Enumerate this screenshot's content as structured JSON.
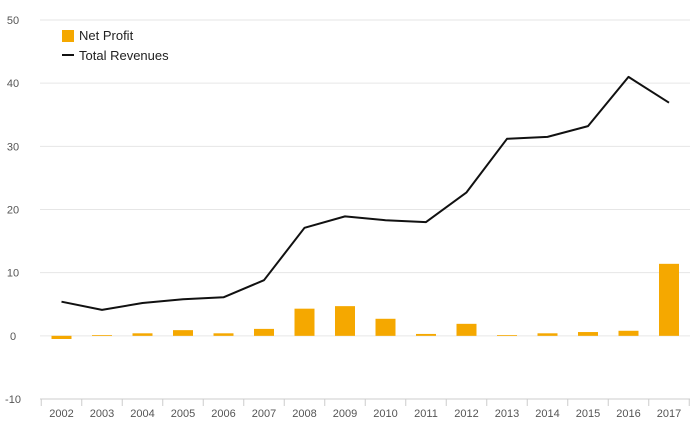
{
  "chart_data": {
    "type": "bar+line",
    "categories": [
      "2002",
      "2003",
      "2004",
      "2005",
      "2006",
      "2007",
      "2008",
      "2009",
      "2010",
      "2011",
      "2012",
      "2013",
      "2014",
      "2015",
      "2016",
      "2017"
    ],
    "series": [
      {
        "name": "Net Profit",
        "kind": "bar",
        "color": "#F5A800",
        "values": [
          -0.5,
          0.1,
          0.4,
          0.9,
          0.4,
          1.1,
          4.3,
          4.7,
          2.7,
          0.3,
          1.9,
          0.1,
          0.4,
          0.6,
          0.8,
          11.4
        ]
      },
      {
        "name": "Total Revenues",
        "kind": "line",
        "color": "#111111",
        "values": [
          5.4,
          4.1,
          5.2,
          5.8,
          6.1,
          8.8,
          17.1,
          18.9,
          18.3,
          18.0,
          22.7,
          31.2,
          31.5,
          33.2,
          41.0,
          36.9
        ]
      }
    ],
    "ylim": [
      -10,
      50
    ],
    "yticks": [
      -10,
      0,
      10,
      20,
      30,
      40,
      50
    ],
    "grid": true,
    "legend": "top-left",
    "xlabel": "",
    "ylabel": ""
  }
}
